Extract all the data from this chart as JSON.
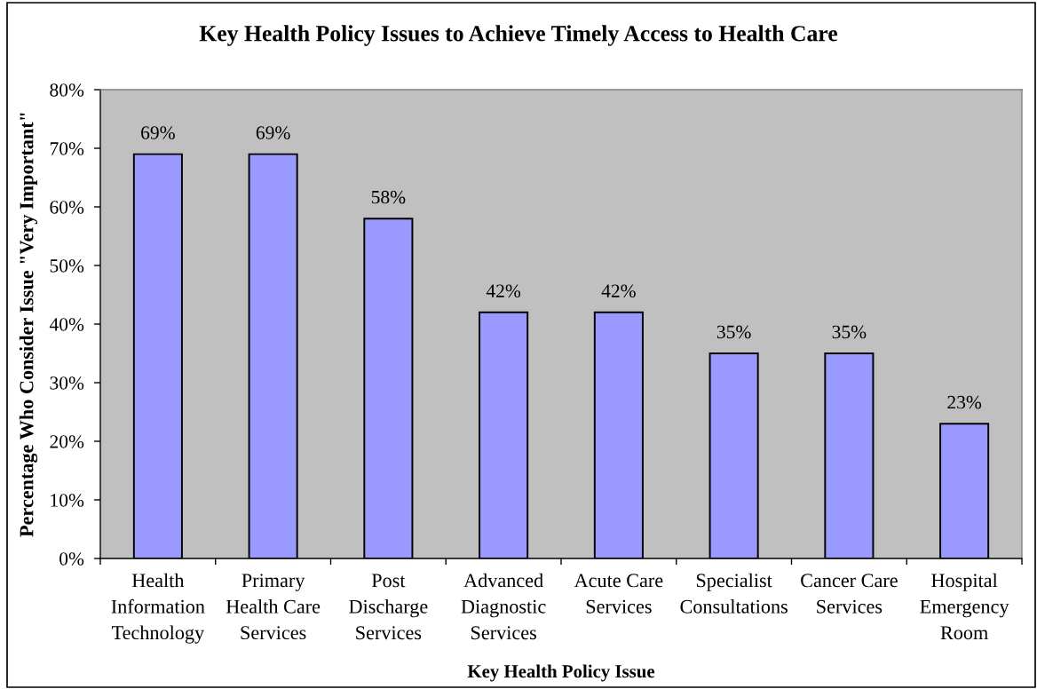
{
  "chart_data": {
    "type": "bar",
    "title": "Key Health Policy Issues to Achieve Timely Access to Health Care",
    "xlabel": "Key Health Policy Issue",
    "ylabel": "Percentage Who Consider Issue \"Very Important\"",
    "categories": [
      "Health\nInformation\nTechnology",
      "Primary\nHealth Care\nServices",
      "Post\nDischarge\nServices",
      "Advanced\nDiagnostic\nServices",
      "Acute Care\nServices",
      "Specialist\nConsultations",
      "Cancer Care\nServices",
      "Hospital\nEmergency\nRoom"
    ],
    "values": [
      69,
      69,
      58,
      42,
      42,
      35,
      35,
      23
    ],
    "value_labels": [
      "69%",
      "69%",
      "58%",
      "42%",
      "42%",
      "35%",
      "35%",
      "23%"
    ],
    "color": "#9999ff",
    "ylim": [
      0,
      80
    ],
    "yticks": [
      {
        "value": 0,
        "label": "0%"
      },
      {
        "value": 10,
        "label": "10%"
      },
      {
        "value": 20,
        "label": "20%"
      },
      {
        "value": 30,
        "label": "30%"
      },
      {
        "value": 40,
        "label": "40%"
      },
      {
        "value": 50,
        "label": "50%"
      },
      {
        "value": 60,
        "label": "60%"
      },
      {
        "value": 70,
        "label": "70%"
      },
      {
        "value": 80,
        "label": "80%"
      }
    ],
    "legend": false
  }
}
